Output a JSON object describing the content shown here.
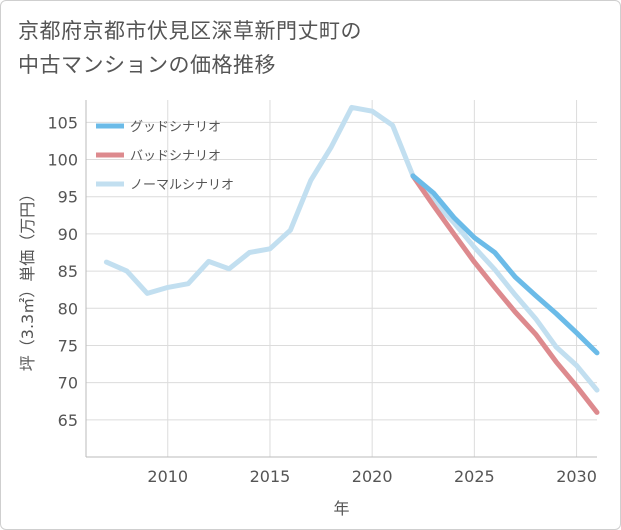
{
  "title_lines": [
    "京都府京都市伏見区深草新門丈町の",
    "中古マンションの価格推移"
  ],
  "chart_data": {
    "type": "line",
    "xlabel": "年",
    "ylabel": "坪（3.3㎡）単価（万円）",
    "xlim": [
      2006,
      2031
    ],
    "ylim": [
      60,
      108
    ],
    "x_ticks": [
      2010,
      2015,
      2020,
      2025,
      2030
    ],
    "y_ticks": [
      65,
      70,
      75,
      80,
      85,
      90,
      95,
      100,
      105
    ],
    "grid": true,
    "legend_position": "top-left",
    "series": [
      {
        "name": "グッドシナリオ",
        "color": "#6bbbe8",
        "x": [
          2022,
          2023,
          2024,
          2025,
          2026,
          2027,
          2028,
          2029,
          2030,
          2031
        ],
        "values": [
          97.8,
          95.5,
          92.2,
          89.5,
          87.5,
          84.2,
          81.7,
          79.3,
          76.7,
          74.0
        ]
      },
      {
        "name": "バッドシナリオ",
        "color": "#dd8a8e",
        "x": [
          2022,
          2023,
          2024,
          2025,
          2026,
          2027,
          2028,
          2029,
          2030,
          2031
        ],
        "values": [
          97.8,
          93.8,
          90.0,
          86.2,
          82.8,
          79.5,
          76.5,
          72.8,
          69.5,
          66.0
        ]
      },
      {
        "name": "ノーマルシナリオ",
        "color": "#c2dff0",
        "x": [
          2007,
          2008,
          2009,
          2010,
          2011,
          2012,
          2013,
          2014,
          2015,
          2016,
          2017,
          2018,
          2019,
          2020,
          2021,
          2022,
          2023,
          2024,
          2025,
          2026,
          2027,
          2028,
          2029,
          2030,
          2031
        ],
        "values": [
          86.2,
          85.0,
          82.0,
          82.8,
          83.3,
          86.3,
          85.3,
          87.5,
          88.0,
          90.5,
          97.2,
          101.7,
          107.0,
          106.5,
          104.6,
          97.8,
          94.4,
          91.5,
          88.2,
          85.2,
          81.8,
          78.6,
          74.8,
          72.3,
          69.0
        ]
      }
    ]
  }
}
